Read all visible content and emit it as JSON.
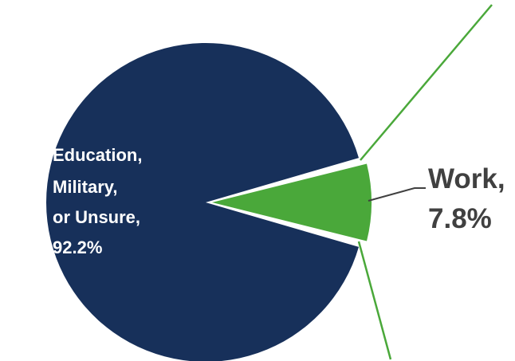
{
  "chart_data": {
    "type": "pie",
    "slices": [
      {
        "category": "Education, Military, or Unsure",
        "label_lines": [
          "Education,",
          "Military,",
          "or Unsure,",
          "92.2%"
        ],
        "value": 92.2,
        "color": "#17305a",
        "exploded": false
      },
      {
        "category": "Work",
        "label_lines": [
          "Work,",
          "7.8%"
        ],
        "value": 7.8,
        "color": "#4aa83a",
        "exploded": true
      }
    ],
    "colors": {
      "label_light": "#ffffff",
      "label_dark": "#404040",
      "leader": "#404040",
      "guide": "#4aa83a"
    }
  }
}
